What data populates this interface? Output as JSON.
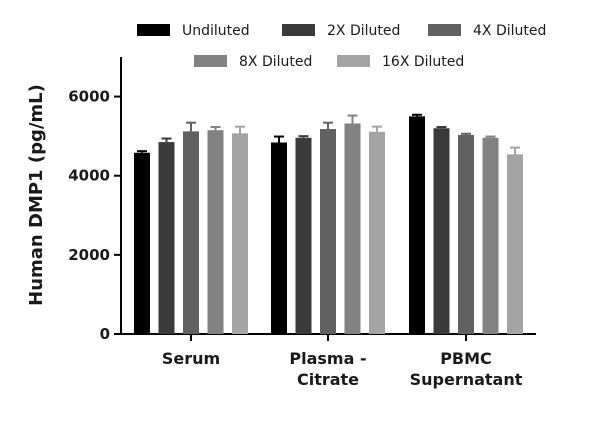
{
  "chart_data": {
    "type": "bar",
    "title": "",
    "xlabel": "",
    "ylabel": "Human DMP1 (pg/mL)",
    "ylim": [
      0,
      7000
    ],
    "yticks": [
      0,
      2000,
      4000,
      6000
    ],
    "ytick_labels": [
      "0",
      "2000",
      "4000",
      "6000"
    ],
    "grid": false,
    "legend_position": "top",
    "categories": [
      [
        "Serum"
      ],
      [
        "Plasma -",
        "Citrate"
      ],
      [
        "PBMC",
        "Supernatant"
      ]
    ],
    "series": [
      {
        "name": "Undiluted",
        "color": "#000000",
        "values": [
          4580,
          4840,
          5500
        ],
        "errors": [
          40,
          150,
          40
        ]
      },
      {
        "name": "2X Diluted",
        "color": "#3a3a3a",
        "values": [
          4850,
          4960,
          5200
        ],
        "errors": [
          90,
          40,
          30
        ]
      },
      {
        "name": "4X Diluted",
        "color": "#616161",
        "values": [
          5120,
          5180,
          5030
        ],
        "errors": [
          220,
          160,
          30
        ]
      },
      {
        "name": "8X Diluted",
        "color": "#828282",
        "values": [
          5150,
          5320,
          4960
        ],
        "errors": [
          80,
          200,
          30
        ]
      },
      {
        "name": "16X Diluted",
        "color": "#a4a4a4",
        "values": [
          5070,
          5110,
          4540
        ],
        "errors": [
          170,
          130,
          170
        ]
      }
    ]
  }
}
